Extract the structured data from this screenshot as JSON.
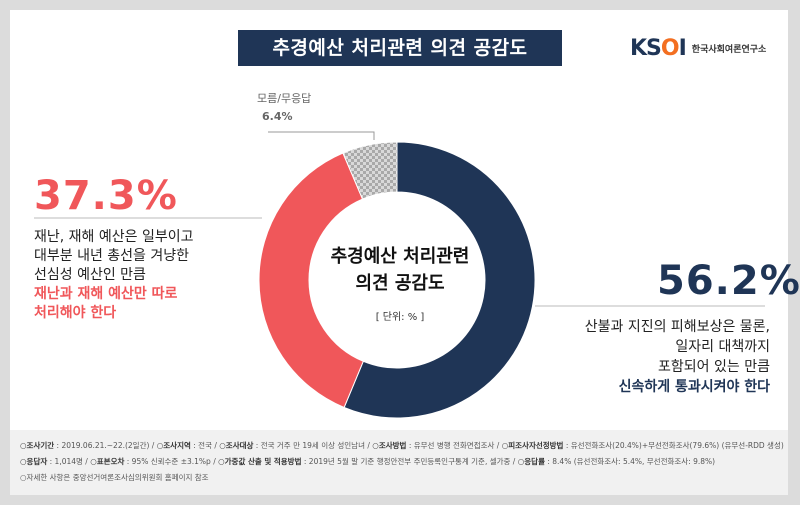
{
  "title": "추경예산 처리관련 의견 공감도",
  "logo": {
    "mark_left": "KS",
    "mark_o": "O",
    "mark_right": "I",
    "subtitle": "한국사회여론연구소"
  },
  "center": {
    "line1": "추경예산 처리관련",
    "line2": "의견 공감도",
    "unit": "[ 단위: % ]"
  },
  "left": {
    "percent": "37.3%",
    "line1": "재난, 재해 예산은 일부이고",
    "line2": "대부분 내년 총선을 겨냥한",
    "line3": "선심성 예산인 만큼",
    "line4": "재난과 재해 예산만 따로",
    "line5": "처리해야 한다"
  },
  "right": {
    "percent": "56.2%",
    "line1": "산불과 지진의 피해보상은 물론,",
    "line2": "일자리 대책까지",
    "line3": "포함되어 있는 만큼",
    "line4": "신속하게 통과시켜야 한다"
  },
  "dontknow": {
    "label": "모름/무응답",
    "percent": "6.4%"
  },
  "chart_data": {
    "type": "pie",
    "donut": true,
    "title": "추경예산 처리관련 의견 공감도",
    "unit": "%",
    "categories": [
      "신속하게 통과시켜야 한다",
      "재난과 재해 예산만 따로 처리해야 한다",
      "모름/무응답"
    ],
    "values": [
      56.2,
      37.3,
      6.4
    ],
    "colors": [
      "#1f3556",
      "#f0575a",
      "#bdbdbd"
    ]
  },
  "footer": {
    "line1": [
      {
        "k": "○조사기간",
        "v": " : 2019.06.21.~22.(2일간) / "
      },
      {
        "k": "○조사지역",
        "v": " : 전국 / "
      },
      {
        "k": "○조사대상",
        "v": " : 전국 거주 만 19세 이상 성인남녀 / "
      },
      {
        "k": "○조사방법",
        "v": " : 유무선 병행 전화면접조사 / "
      },
      {
        "k": "○피조사자선정방법",
        "v": " : 유선전화조사(20.4%)+무선전화조사(79.6%) (유무선-RDD 생성)"
      }
    ],
    "line2": [
      {
        "k": "○응답자",
        "v": " : 1,014명 / "
      },
      {
        "k": "○표본오차",
        "v": " : 95% 신뢰수준 ±3.1%p / "
      },
      {
        "k": "○가중값 산출 및 적용방법",
        "v": " : 2019년 5월 말 기준 행정안전부 주민등록인구통계 기준, 셀가중 / "
      },
      {
        "k": "○응답률",
        "v": " : 8.4% (유선전화조사: 5.4%, 무선전화조사: 9.8%)"
      }
    ],
    "line3": "○자세한 사항은 중앙선거여론조사심의위원회 홈페이지 참조"
  }
}
